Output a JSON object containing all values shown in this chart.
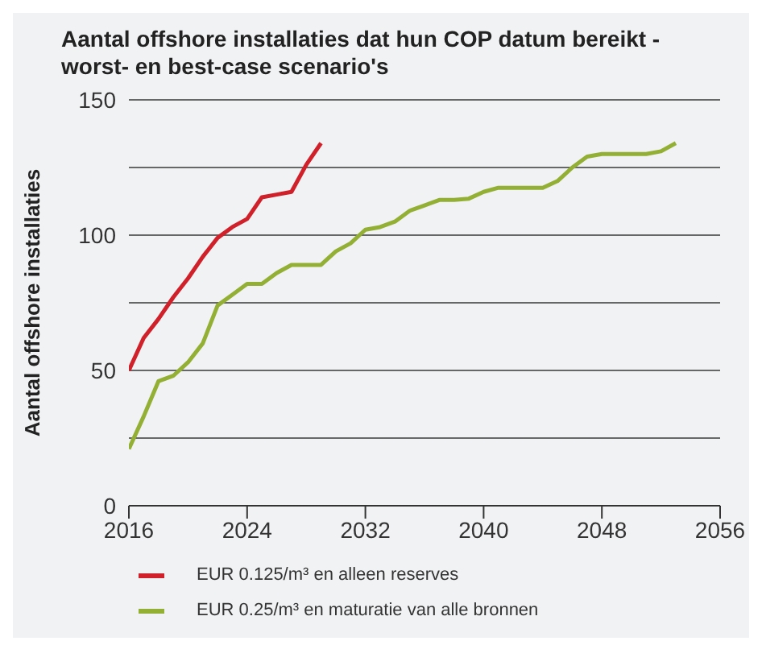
{
  "chart_data": {
    "type": "line",
    "title": "Aantal offshore installaties dat hun COP datum bereikt - worst- en best-case scenario's",
    "ylabel": "Aantal offshore installaties",
    "xlim": [
      2016,
      2056
    ],
    "xticks": [
      2016,
      2024,
      2032,
      2040,
      2048,
      2056
    ],
    "ylim": [
      0,
      150
    ],
    "yticks": [
      0,
      {
        "value": 25,
        "label": null
      },
      50,
      {
        "value": 75,
        "label": null
      },
      100,
      {
        "value": 125,
        "label": null
      },
      150
    ],
    "grid": "y",
    "legend": "bottom",
    "marker": "none",
    "line_style": "solid",
    "series": [
      {
        "name": "EUR 0.125/m³ en alleen reserves",
        "color": "#d0202a",
        "x": [
          2016,
          2017,
          2018,
          2019,
          2020,
          2021,
          2022,
          2023,
          2024,
          2025,
          2026,
          2027,
          2028,
          2029
        ],
        "values": [
          50,
          62,
          69,
          77,
          84,
          92,
          99,
          103,
          106,
          114,
          115,
          116,
          126,
          134
        ]
      },
      {
        "name": "EUR 0.25/m³ en maturatie van alle bronnen",
        "color": "#93b034",
        "x": [
          2016,
          2017,
          2018,
          2019,
          2020,
          2021,
          2022,
          2023,
          2024,
          2025,
          2026,
          2027,
          2028,
          2029,
          2030,
          2031,
          2032,
          2033,
          2034,
          2035,
          2036,
          2037,
          2038,
          2039,
          2040,
          2041,
          2042,
          2043,
          2044,
          2045,
          2046,
          2047,
          2048,
          2049,
          2050,
          2051,
          2052,
          2053
        ],
        "values": [
          21,
          33,
          46,
          48,
          53,
          60,
          74,
          78,
          82,
          82,
          86,
          89,
          89,
          89,
          94,
          97,
          102,
          103,
          105,
          109,
          111,
          113,
          113,
          113.5,
          116,
          117.5,
          117.5,
          117.5,
          117.5,
          120,
          125,
          129,
          130,
          130,
          130,
          130,
          131,
          134
        ]
      }
    ]
  }
}
